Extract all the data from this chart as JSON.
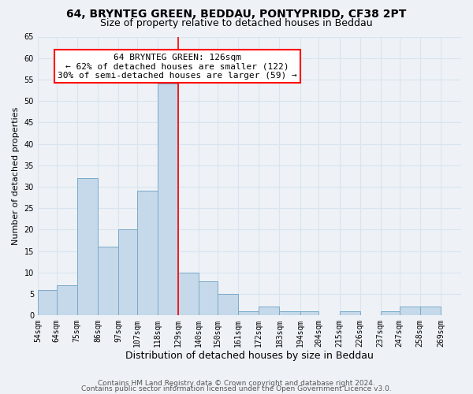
{
  "title1": "64, BRYNTEG GREEN, BEDDAU, PONTYPRIDD, CF38 2PT",
  "title2": "Size of property relative to detached houses in Beddau",
  "xlabel": "Distribution of detached houses by size in Beddau",
  "ylabel": "Number of detached properties",
  "bar_color": "#c5d9ea",
  "bar_edge_color": "#7aaac8",
  "bin_labels": [
    "54sqm",
    "64sqm",
    "75sqm",
    "86sqm",
    "97sqm",
    "107sqm",
    "118sqm",
    "129sqm",
    "140sqm",
    "150sqm",
    "161sqm",
    "172sqm",
    "183sqm",
    "194sqm",
    "204sqm",
    "215sqm",
    "226sqm",
    "237sqm",
    "247sqm",
    "258sqm",
    "269sqm"
  ],
  "bin_edges": [
    54,
    64,
    75,
    86,
    97,
    107,
    118,
    129,
    140,
    150,
    161,
    172,
    183,
    194,
    204,
    215,
    226,
    237,
    247,
    258,
    269
  ],
  "counts": [
    6,
    7,
    32,
    16,
    20,
    29,
    54,
    10,
    8,
    5,
    1,
    2,
    1,
    1,
    0,
    1,
    0,
    1,
    2,
    2
  ],
  "property_line_x": 129,
  "annotation_text": "64 BRYNTEG GREEN: 126sqm\n← 62% of detached houses are smaller (122)\n30% of semi-detached houses are larger (59) →",
  "ylim": [
    0,
    65
  ],
  "yticks": [
    0,
    5,
    10,
    15,
    20,
    25,
    30,
    35,
    40,
    45,
    50,
    55,
    60,
    65
  ],
  "footer1": "Contains HM Land Registry data © Crown copyright and database right 2024.",
  "footer2": "Contains public sector information licensed under the Open Government Licence v3.0.",
  "bg_color": "#eef2f7",
  "grid_color": "#d8e4f0",
  "title1_fontsize": 10,
  "title2_fontsize": 9,
  "xlabel_fontsize": 9,
  "ylabel_fontsize": 8,
  "tick_fontsize": 7,
  "annotation_fontsize": 8,
  "footer_fontsize": 6.5
}
